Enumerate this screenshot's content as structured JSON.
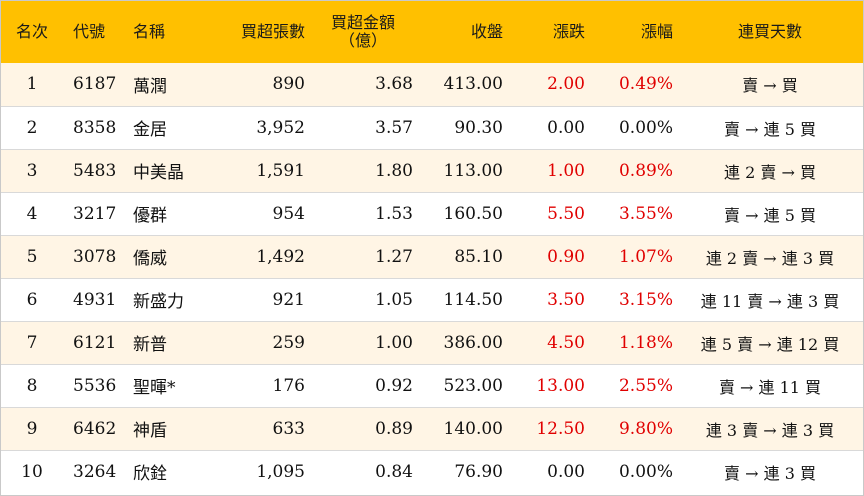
{
  "header": {
    "rank": "名次",
    "code": "代號",
    "name": "名稱",
    "net_buy_lots": "買超張數",
    "net_buy_amount_line1": "買超金額",
    "net_buy_amount_line2": "（億）",
    "close": "收盤",
    "change": "漲跌",
    "change_pct": "漲幅",
    "consecutive_days": "連買天數"
  },
  "colors": {
    "header_bg": "#ffc000",
    "row_alt_bg": "#fff5e5",
    "up": "#e00000"
  },
  "rows": [
    {
      "rank": "1",
      "code": "6187",
      "name": "萬潤",
      "lots": "890",
      "amount": "3.68",
      "close": "413.00",
      "change": "2.00",
      "pct": "0.49%",
      "days": "賣 → 買",
      "up": true
    },
    {
      "rank": "2",
      "code": "8358",
      "name": "金居",
      "lots": "3,952",
      "amount": "3.57",
      "close": "90.30",
      "change": "0.00",
      "pct": "0.00%",
      "days": "賣 → 連 5 買",
      "up": false
    },
    {
      "rank": "3",
      "code": "5483",
      "name": "中美晶",
      "lots": "1,591",
      "amount": "1.80",
      "close": "113.00",
      "change": "1.00",
      "pct": "0.89%",
      "days": "連 2 賣 → 買",
      "up": true
    },
    {
      "rank": "4",
      "code": "3217",
      "name": "優群",
      "lots": "954",
      "amount": "1.53",
      "close": "160.50",
      "change": "5.50",
      "pct": "3.55%",
      "days": "賣 → 連 5 買",
      "up": true
    },
    {
      "rank": "5",
      "code": "3078",
      "name": "僑威",
      "lots": "1,492",
      "amount": "1.27",
      "close": "85.10",
      "change": "0.90",
      "pct": "1.07%",
      "days": "連 2 賣 → 連 3 買",
      "up": true
    },
    {
      "rank": "6",
      "code": "4931",
      "name": "新盛力",
      "lots": "921",
      "amount": "1.05",
      "close": "114.50",
      "change": "3.50",
      "pct": "3.15%",
      "days": "連 11 賣 → 連 3 買",
      "up": true
    },
    {
      "rank": "7",
      "code": "6121",
      "name": "新普",
      "lots": "259",
      "amount": "1.00",
      "close": "386.00",
      "change": "4.50",
      "pct": "1.18%",
      "days": "連 5 賣 → 連 12 買",
      "up": true
    },
    {
      "rank": "8",
      "code": "5536",
      "name": "聖暉*",
      "lots": "176",
      "amount": "0.92",
      "close": "523.00",
      "change": "13.00",
      "pct": "2.55%",
      "days": "賣 → 連 11 買",
      "up": true
    },
    {
      "rank": "9",
      "code": "6462",
      "name": "神盾",
      "lots": "633",
      "amount": "0.89",
      "close": "140.00",
      "change": "12.50",
      "pct": "9.80%",
      "days": "連 3 賣 → 連 3 買",
      "up": true
    },
    {
      "rank": "10",
      "code": "3264",
      "name": "欣銓",
      "lots": "1,095",
      "amount": "0.84",
      "close": "76.90",
      "change": "0.00",
      "pct": "0.00%",
      "days": "賣 → 連 3 買",
      "up": false
    }
  ]
}
